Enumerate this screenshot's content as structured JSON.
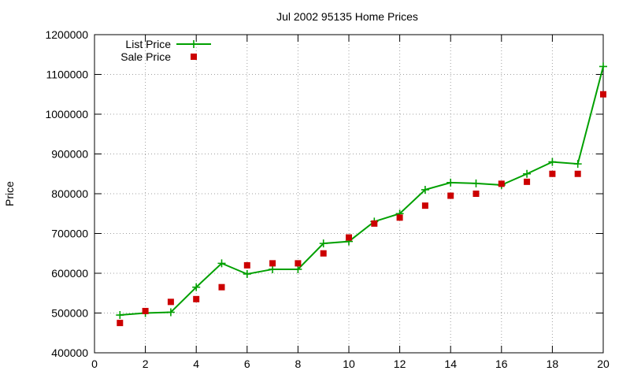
{
  "chart_data": {
    "type": "line",
    "title": "Jul 2002 95135 Home Prices",
    "xlabel": "",
    "ylabel": "Price",
    "xlim": [
      0,
      20
    ],
    "ylim": [
      400000,
      1200000
    ],
    "x_ticks": [
      0,
      2,
      4,
      6,
      8,
      10,
      12,
      14,
      16,
      18,
      20
    ],
    "y_ticks": [
      400000,
      500000,
      600000,
      700000,
      800000,
      900000,
      1000000,
      1100000,
      1200000
    ],
    "x_tick_labels": [
      "0",
      "2",
      "4",
      "6",
      "8",
      "10",
      "12",
      "14",
      "16",
      "18",
      "20"
    ],
    "y_tick_labels": [
      "400000",
      "500000",
      "600000",
      "700000",
      "800000",
      "900000",
      "1000000",
      "1100000",
      "1200000"
    ],
    "grid": true,
    "legend_position": "top-left",
    "series": [
      {
        "name": "List Price",
        "style": "line+cross",
        "color": "#00a000",
        "x": [
          1,
          2,
          3,
          4,
          5,
          6,
          7,
          8,
          9,
          10,
          11,
          12,
          13,
          14,
          15,
          16,
          17,
          18,
          19,
          20
        ],
        "values": [
          495000,
          500000,
          502000,
          565000,
          625000,
          598000,
          610000,
          610000,
          675000,
          680000,
          730000,
          750000,
          810000,
          828000,
          826000,
          822000,
          850000,
          880000,
          875000,
          1120000
        ]
      },
      {
        "name": "Sale Price",
        "style": "square",
        "color": "#cc0000",
        "x": [
          1,
          2,
          3,
          4,
          5,
          6,
          7,
          8,
          9,
          10,
          11,
          12,
          13,
          14,
          15,
          16,
          17,
          18,
          19,
          20
        ],
        "values": [
          475000,
          505000,
          528000,
          535000,
          565000,
          620000,
          625000,
          625000,
          650000,
          690000,
          725000,
          740000,
          770000,
          795000,
          800000,
          825000,
          830000,
          850000,
          850000,
          1050000
        ]
      }
    ]
  }
}
